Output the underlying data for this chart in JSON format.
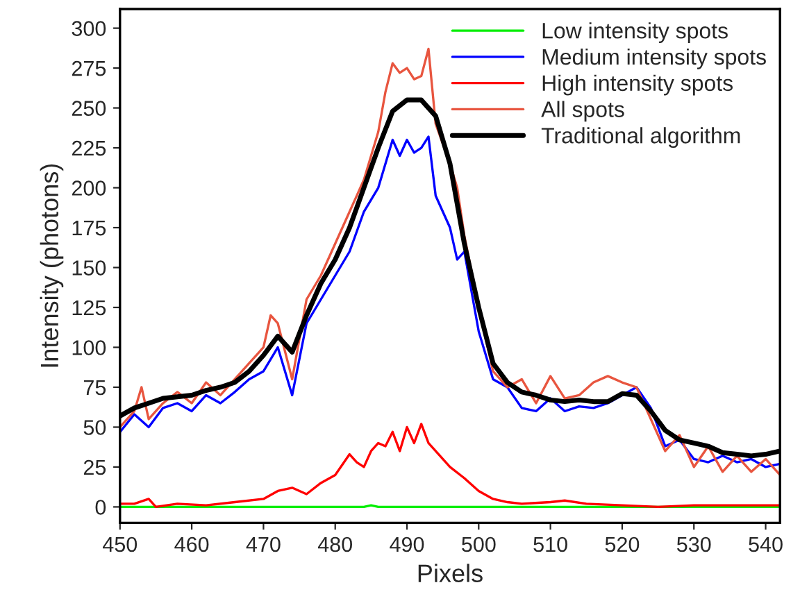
{
  "chart_data": {
    "type": "line",
    "xlabel": "Pixels",
    "ylabel": "Intensity (photons)",
    "xlim": [
      450,
      542
    ],
    "ylim": [
      -10,
      312
    ],
    "xticks": [
      450,
      460,
      470,
      480,
      490,
      500,
      510,
      520,
      530,
      540
    ],
    "yticks": [
      0,
      25,
      50,
      75,
      100,
      125,
      150,
      175,
      200,
      225,
      250,
      275,
      300
    ],
    "grid": false,
    "legend": "top right",
    "marker": "none",
    "line_style": "solid",
    "series": [
      {
        "name": "Low intensity spots",
        "color": "#00ee00",
        "x": [
          450,
          484,
          485,
          486,
          542
        ],
        "values": [
          0,
          0,
          1,
          0,
          0
        ]
      },
      {
        "name": "Medium intensity spots",
        "color": "#0000ff",
        "x": [
          450,
          452,
          454,
          456,
          458,
          460,
          462,
          464,
          466,
          468,
          470,
          472,
          474,
          476,
          478,
          480,
          482,
          484,
          486,
          487,
          488,
          489,
          490,
          491,
          492,
          493,
          494,
          496,
          497,
          498,
          500,
          502,
          504,
          506,
          508,
          510,
          512,
          514,
          516,
          518,
          520,
          522,
          524,
          526,
          528,
          530,
          532,
          534,
          536,
          538,
          540,
          542
        ],
        "values": [
          47,
          58,
          50,
          62,
          65,
          60,
          70,
          65,
          72,
          80,
          85,
          100,
          70,
          115,
          130,
          145,
          160,
          185,
          200,
          215,
          230,
          220,
          230,
          222,
          225,
          232,
          195,
          175,
          155,
          160,
          110,
          80,
          75,
          62,
          60,
          68,
          60,
          63,
          62,
          65,
          70,
          75,
          62,
          38,
          42,
          30,
          28,
          32,
          28,
          30,
          25,
          27
        ]
      },
      {
        "name": "High intensity spots",
        "color": "#ff0000",
        "x": [
          450,
          452,
          454,
          455,
          458,
          462,
          466,
          470,
          472,
          474,
          476,
          478,
          480,
          482,
          483,
          484,
          485,
          486,
          487,
          488,
          489,
          490,
          491,
          492,
          493,
          494,
          496,
          498,
          500,
          502,
          504,
          506,
          510,
          512,
          515,
          520,
          525,
          530,
          542
        ],
        "values": [
          2,
          2,
          5,
          0,
          2,
          1,
          3,
          5,
          10,
          12,
          8,
          15,
          20,
          33,
          28,
          25,
          35,
          40,
          38,
          47,
          35,
          50,
          40,
          52,
          40,
          35,
          25,
          18,
          10,
          5,
          3,
          2,
          3,
          4,
          2,
          1,
          0,
          1,
          1
        ]
      },
      {
        "name": "All spots",
        "color": "#e8553f",
        "x": [
          450,
          452,
          453,
          454,
          456,
          458,
          460,
          462,
          464,
          466,
          468,
          470,
          471,
          472,
          474,
          476,
          478,
          480,
          482,
          484,
          486,
          487,
          488,
          489,
          490,
          491,
          492,
          493,
          494,
          496,
          497,
          498,
          500,
          502,
          504,
          506,
          508,
          510,
          512,
          514,
          516,
          518,
          520,
          522,
          524,
          526,
          528,
          530,
          532,
          534,
          536,
          538,
          540,
          542
        ],
        "values": [
          50,
          60,
          75,
          55,
          65,
          72,
          65,
          78,
          70,
          80,
          90,
          100,
          120,
          115,
          80,
          130,
          145,
          165,
          185,
          205,
          235,
          260,
          278,
          272,
          275,
          268,
          270,
          287,
          240,
          215,
          200,
          170,
          125,
          85,
          75,
          80,
          65,
          82,
          68,
          70,
          78,
          82,
          78,
          75,
          55,
          35,
          45,
          25,
          38,
          22,
          32,
          22,
          30,
          20
        ]
      },
      {
        "name": "Traditional algorithm",
        "color": "#000000",
        "x": [
          450,
          452,
          454,
          456,
          458,
          460,
          462,
          464,
          466,
          468,
          470,
          472,
          474,
          476,
          478,
          480,
          482,
          484,
          486,
          488,
          490,
          492,
          494,
          496,
          498,
          500,
          502,
          504,
          506,
          508,
          510,
          512,
          514,
          516,
          518,
          520,
          522,
          524,
          526,
          528,
          530,
          532,
          534,
          536,
          538,
          540,
          542
        ],
        "values": [
          57,
          62,
          65,
          68,
          69,
          70,
          73,
          75,
          78,
          85,
          95,
          107,
          97,
          120,
          140,
          155,
          175,
          200,
          225,
          248,
          255,
          255,
          245,
          215,
          165,
          125,
          90,
          78,
          72,
          70,
          67,
          66,
          67,
          66,
          66,
          71,
          70,
          60,
          48,
          42,
          40,
          38,
          34,
          33,
          32,
          33,
          35
        ]
      }
    ]
  }
}
